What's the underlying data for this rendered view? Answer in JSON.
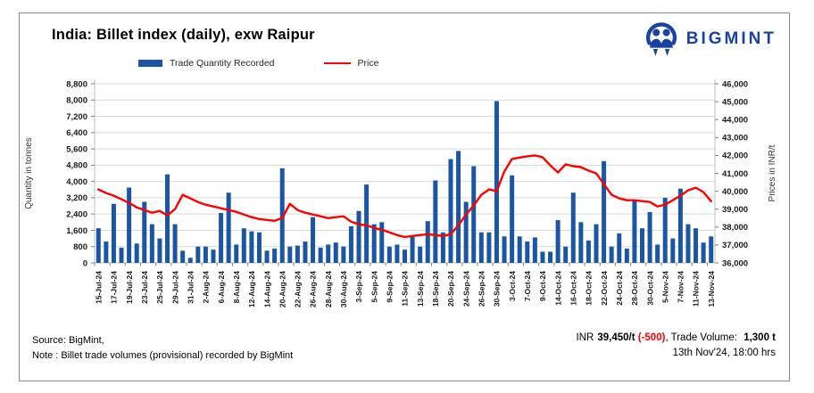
{
  "header": {
    "title": "India: Billet index (daily), exw Raipur",
    "brand": "BIGMINT"
  },
  "colors": {
    "bar_blue": "#1A56A5",
    "price_red": "#FF0000",
    "brand_blue": "#1B429E",
    "gridline": "#D9D9D9",
    "axis_line": "#BFBFBF"
  },
  "chart_data": {
    "type": "combo-bar-line",
    "title": "India: Billet index (daily), exw Raipur",
    "grid": true,
    "legend_position": "top",
    "n_points": 81,
    "x_label_interval": 2,
    "x_labels": [
      "15-Jul-24",
      "17-Jul-24",
      "19-Jul-24",
      "23-Jul-24",
      "25-Jul-24",
      "29-Jul-24",
      "31-Jul-24",
      "2-Aug-24",
      "6-Aug-24",
      "8-Aug-24",
      "12-Aug-24",
      "14-Aug-24",
      "20-Aug-24",
      "22-Aug-24",
      "26-Aug-24",
      "28-Aug-24",
      "30-Aug-24",
      "3-Sep-24",
      "5-Sep-24",
      "9-Sep-24",
      "11-Sep-24",
      "13-Sep-24",
      "18-Sep-24",
      "20-Sep-24",
      "24-Sep-24",
      "26-Sep-24",
      "30-Sep-24",
      "3-Oct-24",
      "7-Oct-24",
      "9-Oct-24",
      "14-Oct-24",
      "16-Oct-24",
      "18-Oct-24",
      "22-Oct-24",
      "24-Oct-24",
      "28-Oct-24",
      "30-Oct-24",
      "5-Nov-24",
      "7-Nov-24",
      "11-Nov-24",
      "13-Nov-24"
    ],
    "y_left": {
      "label": "Quantity in tonnes",
      "min": 0,
      "max": 8800,
      "step": 800
    },
    "y_right": {
      "label": "Prices in INR/t",
      "min": 36000,
      "max": 46000,
      "step": 1000
    },
    "series": [
      {
        "name": "Trade Quantity Recorded",
        "type": "bar",
        "axis": "left",
        "color": "#1A56A5",
        "values": [
          1700,
          1050,
          2900,
          750,
          3700,
          950,
          3000,
          1900,
          1200,
          4350,
          1900,
          600,
          250,
          800,
          800,
          650,
          2450,
          3450,
          900,
          1700,
          1550,
          1500,
          600,
          700,
          4650,
          800,
          850,
          1050,
          2250,
          750,
          900,
          1000,
          800,
          1800,
          2550,
          3850,
          1900,
          2000,
          800,
          900,
          650,
          1300,
          800,
          2050,
          4050,
          1500,
          5100,
          5500,
          3000,
          4750,
          1500,
          1500,
          7950,
          1300,
          4300,
          1300,
          1050,
          1250,
          550,
          550,
          2100,
          800,
          3450,
          2000,
          1100,
          1900,
          5000,
          800,
          1450,
          700,
          3100,
          1700,
          2500,
          900,
          3200,
          1200,
          3650,
          1900,
          1700,
          1000,
          1300
        ]
      },
      {
        "name": "Price",
        "type": "line",
        "axis": "right",
        "color": "#FF0000",
        "values": [
          40100,
          39900,
          39750,
          39550,
          39350,
          39100,
          38950,
          38800,
          38900,
          38650,
          39000,
          39800,
          39600,
          39400,
          39250,
          39150,
          39050,
          38950,
          38850,
          38700,
          38550,
          38450,
          38400,
          38350,
          38500,
          39300,
          38950,
          38800,
          38700,
          38600,
          38500,
          38550,
          38600,
          38300,
          38150,
          38100,
          37950,
          37850,
          37700,
          37550,
          37450,
          37500,
          37550,
          37600,
          37550,
          37500,
          37600,
          38100,
          38700,
          39200,
          39800,
          40100,
          40000,
          41100,
          41800,
          41880,
          41950,
          42000,
          41900,
          41450,
          41050,
          41500,
          41400,
          41350,
          41150,
          41000,
          40400,
          39800,
          39600,
          39500,
          39500,
          39450,
          39400,
          39150,
          39250,
          39500,
          39750,
          40050,
          40200,
          39950,
          39450
        ]
      }
    ]
  },
  "footer": {
    "source": "Source: BigMint,",
    "note": "Note : Billet trade volumes (provisional) recorded by BigMint",
    "price_prefix": "INR",
    "price_value": "39,450/t",
    "price_change": "(-500)",
    "trade_volume_label": ", Trade Volume:",
    "trade_volume_value": "1,300 t",
    "timestamp": "13th Nov'24, 18:00 hrs"
  }
}
